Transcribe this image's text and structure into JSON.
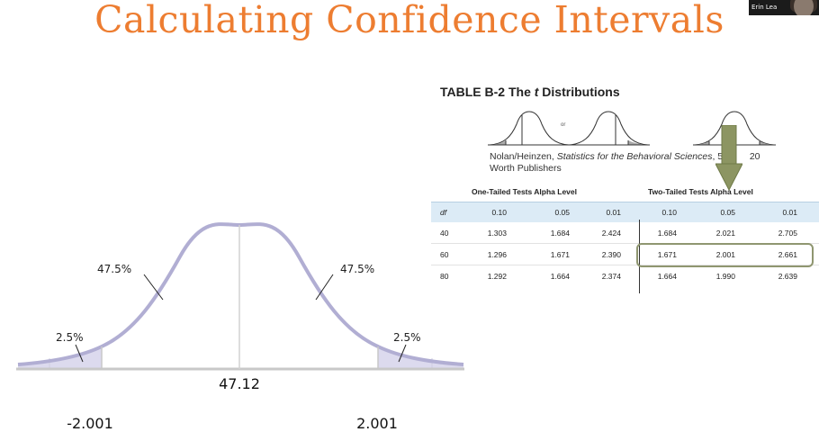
{
  "slide": {
    "title": "Calculating Confidence Intervals"
  },
  "participant": {
    "name": "Erin Lea"
  },
  "curve": {
    "center_label": "47.12",
    "left_mid_pct": "47.5%",
    "right_mid_pct": "47.5%",
    "left_tail_pct": "2.5%",
    "right_tail_pct": "2.5%",
    "left_cutoff": "-2.001",
    "right_cutoff": "2.001"
  },
  "table": {
    "heading_prefix": "TABLE B-2 The ",
    "heading_italic": "t",
    "heading_suffix": " Distributions",
    "or_label": "or",
    "credit_prefix": "Nolan/Heinzen, ",
    "credit_italic": "Statistics for the Behavioral Sciences",
    "credit_suffix": ", 5e, ",
    "credit_year_fragment": "20",
    "credit_line2": "Worth Publishers",
    "one_tailed_label": "One-Tailed Tests Alpha Level",
    "two_tailed_label": "Two-Tailed Tests Alpha Level",
    "df_header": "df",
    "alpha_headers": [
      "0.10",
      "0.05",
      "0.01",
      "0.10",
      "0.05",
      "0.01"
    ],
    "rows": [
      {
        "df": "40",
        "values": [
          "1.303",
          "1.684",
          "2.424",
          "1.684",
          "2.021",
          "2.705"
        ]
      },
      {
        "df": "60",
        "values": [
          "1.296",
          "1.671",
          "2.390",
          "1.671",
          "2.001",
          "2.661"
        ]
      },
      {
        "df": "80",
        "values": [
          "1.292",
          "1.664",
          "2.374",
          "1.664",
          "1.990",
          "2.639"
        ]
      }
    ],
    "highlighted_row_df": "60"
  },
  "colors": {
    "title": "#ed7d31",
    "curve": "#b1aed3",
    "tail_fill": "#dcdaee",
    "arrow": "#8c9562",
    "highlight_border": "#8f9670",
    "header_band": "#dcebf6"
  }
}
